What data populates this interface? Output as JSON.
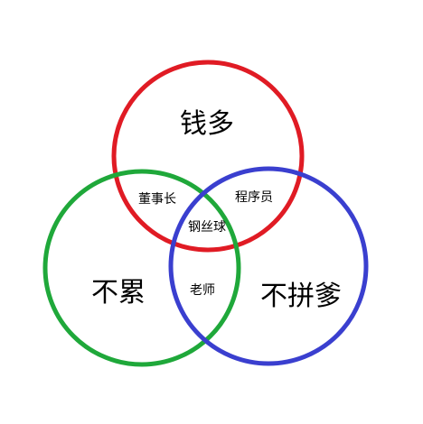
{
  "venn": {
    "sets": {
      "red": {
        "label": "钱多",
        "color": "#e01b24"
      },
      "green": {
        "label": "不累",
        "color": "#1fa83a"
      },
      "blue": {
        "label": "不拼爹",
        "color": "#3a3fcf"
      }
    },
    "intersections": {
      "red_green": "董事长",
      "red_blue": "程序员",
      "red_green_blue": "钢丝球",
      "green_blue": "老师"
    }
  }
}
